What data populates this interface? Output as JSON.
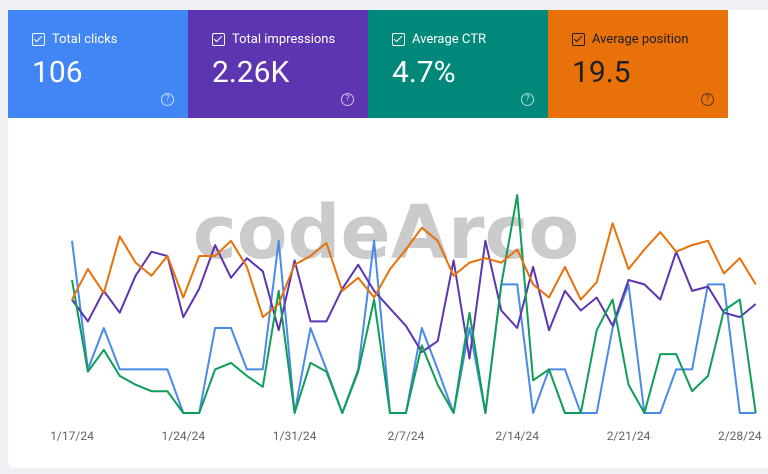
{
  "cards": [
    {
      "label": "Total clicks",
      "value": "106",
      "color": "#4285f4",
      "text_color": "#ffffff"
    },
    {
      "label": "Total impressions",
      "value": "2.26K",
      "color": "#5e35b1",
      "text_color": "#ffffff"
    },
    {
      "label": "Average CTR",
      "value": "4.7%",
      "color": "#00897b",
      "text_color": "#ffffff"
    },
    {
      "label": "Average position",
      "value": "19.5",
      "color": "#e8710a",
      "text_color": "#202124"
    }
  ],
  "watermark": "codeArco",
  "chart_data": {
    "type": "line",
    "x_labels": [
      "1/17/24",
      "1/24/24",
      "1/31/24",
      "2/7/24",
      "2/14/24",
      "2/21/24",
      "2/28/24"
    ],
    "series": [
      {
        "color": "#4a8ae8",
        "values": [
          79,
          20,
          39,
          20,
          20,
          20,
          20,
          0,
          0,
          39,
          39,
          20,
          20,
          79,
          0,
          39,
          20,
          0,
          20,
          79,
          0,
          0,
          39,
          20,
          0,
          39,
          0,
          59,
          59,
          0,
          20,
          20,
          0,
          0,
          39,
          59,
          0,
          0,
          20,
          20,
          59,
          59,
          0,
          0
        ]
      },
      {
        "color": "#5e35b1",
        "values": [
          52,
          42,
          56,
          46,
          63,
          74,
          72,
          44,
          57,
          77,
          62,
          71,
          65,
          38,
          70,
          42,
          42,
          57,
          68,
          56,
          48,
          40,
          28,
          33,
          70,
          25,
          79,
          47,
          39,
          67,
          38,
          56,
          47,
          53,
          40,
          61,
          59,
          52,
          74,
          56,
          58,
          46,
          44,
          50
        ]
      },
      {
        "color": "#0f9d58",
        "values": [
          61,
          19,
          29,
          17,
          13,
          10,
          10,
          0,
          0,
          20,
          23,
          17,
          12,
          56,
          0,
          23,
          19,
          0,
          19,
          52,
          0,
          0,
          31,
          13,
          0,
          46,
          0,
          59,
          100,
          15,
          20,
          0,
          0,
          38,
          52,
          13,
          0,
          27,
          27,
          10,
          17,
          47,
          52,
          0
        ]
      },
      {
        "color": "#e8710a",
        "values": [
          52,
          66,
          55,
          81,
          69,
          63,
          72,
          53,
          72,
          72,
          79,
          67,
          44,
          50,
          68,
          72,
          78,
          56,
          62,
          53,
          66,
          75,
          85,
          79,
          63,
          69,
          71,
          69,
          75,
          59,
          53,
          67,
          52,
          60,
          87,
          66,
          75,
          83,
          74,
          77,
          79,
          64,
          71,
          59
        ]
      }
    ]
  }
}
